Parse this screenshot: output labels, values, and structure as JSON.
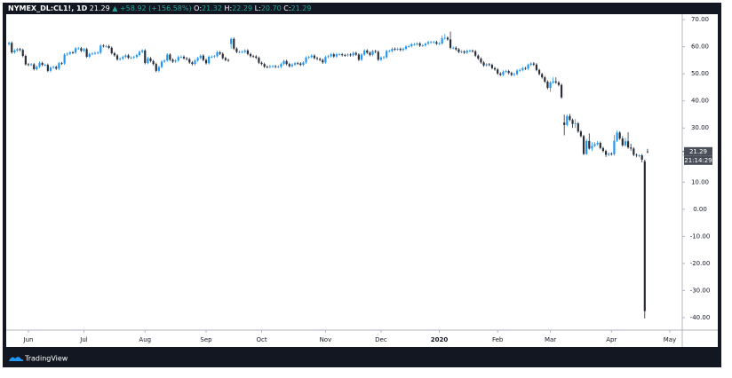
{
  "chart_data": {
    "type": "candlestick",
    "header": {
      "symbol": "NYMEX_DL:CL1!, 1D",
      "last": "21.29",
      "change": "▲ +58.92 (+156.58%)",
      "open_label": "O:",
      "open": "21.32",
      "high_label": "H:",
      "high": "22.29",
      "low_label": "L:",
      "low": "20.70",
      "close_label": "C:",
      "close": "21.29"
    },
    "last_price_label": "21.29",
    "countdown": "21:14:29",
    "brand": "TradingView",
    "up_color": "#2196f3",
    "down_color": "#2a2e39",
    "grid": false,
    "ylim": [
      -44.6,
      72.0
    ],
    "yticks": [
      {
        "value": 70,
        "label": "70.00"
      },
      {
        "value": 60,
        "label": "60.00"
      },
      {
        "value": 50,
        "label": "50.00"
      },
      {
        "value": 40,
        "label": "40.00"
      },
      {
        "value": 30,
        "label": "30.00"
      },
      {
        "value": 20,
        "label": "20.00"
      },
      {
        "value": 10,
        "label": "10.00"
      },
      {
        "value": 0,
        "label": "0.00"
      },
      {
        "value": -10,
        "label": "-10.00"
      },
      {
        "value": -20,
        "label": "-20.00"
      },
      {
        "value": -30,
        "label": "-30.00"
      },
      {
        "value": -40,
        "label": "-40.00"
      }
    ],
    "xlim": [
      -1,
      242.5
    ],
    "xticks": [
      {
        "value": 7,
        "label": "Jun"
      },
      {
        "value": 27,
        "label": "Jul"
      },
      {
        "value": 49,
        "label": "Aug"
      },
      {
        "value": 71,
        "label": "Sep"
      },
      {
        "value": 91,
        "label": "Oct"
      },
      {
        "value": 114,
        "label": "Nov"
      },
      {
        "value": 134,
        "label": "Dec"
      },
      {
        "value": 155,
        "label": "2020"
      },
      {
        "value": 176,
        "label": "Feb"
      },
      {
        "value": 195,
        "label": "Mar"
      },
      {
        "value": 217,
        "label": "Apr"
      },
      {
        "value": 238,
        "label": "May"
      }
    ],
    "ohlc": [
      [
        60.9,
        61.9,
        60.4,
        61.4
      ],
      [
        61.4,
        61.9,
        57.4,
        57.9
      ],
      [
        57.9,
        59.1,
        57.4,
        58.6
      ],
      [
        58.6,
        59.6,
        58.1,
        59.1
      ],
      [
        59.1,
        59.6,
        58.3,
        58.8
      ],
      [
        58.8,
        59.3,
        56.1,
        56.6
      ],
      [
        56.6,
        57.1,
        53.0,
        53.5
      ],
      [
        53.5,
        54.0,
        52.8,
        53.3
      ],
      [
        53.3,
        54.0,
        52.8,
        53.5
      ],
      [
        53.5,
        54.0,
        51.2,
        51.7
      ],
      [
        51.7,
        53.1,
        51.2,
        52.6
      ],
      [
        52.6,
        54.5,
        52.1,
        54.0
      ],
      [
        54.0,
        54.5,
        52.8,
        53.3
      ],
      [
        53.3,
        53.8,
        52.8,
        53.3
      ],
      [
        53.3,
        53.8,
        50.6,
        51.1
      ],
      [
        51.1,
        52.8,
        50.6,
        52.3
      ],
      [
        52.3,
        53.0,
        51.8,
        52.5
      ],
      [
        52.5,
        53.0,
        51.4,
        51.9
      ],
      [
        51.9,
        54.4,
        51.4,
        53.9
      ],
      [
        53.9,
        54.4,
        53.3,
        53.8
      ],
      [
        53.8,
        57.6,
        53.3,
        57.1
      ],
      [
        57.1,
        57.9,
        56.6,
        57.4
      ],
      [
        57.4,
        58.4,
        56.9,
        57.9
      ],
      [
        57.9,
        58.4,
        57.3,
        57.8
      ],
      [
        57.8,
        59.9,
        57.3,
        59.4
      ],
      [
        59.4,
        59.9,
        58.9,
        59.4
      ],
      [
        59.4,
        59.9,
        58.0,
        58.5
      ],
      [
        58.5,
        59.6,
        58.0,
        59.1
      ],
      [
        59.1,
        59.6,
        55.8,
        56.3
      ],
      [
        56.3,
        57.8,
        55.8,
        57.3
      ],
      [
        57.3,
        58.0,
        56.8,
        57.5
      ],
      [
        57.5,
        58.2,
        57.0,
        57.7
      ],
      [
        57.7,
        58.3,
        57.2,
        57.8
      ],
      [
        57.8,
        60.9,
        57.3,
        60.4
      ],
      [
        60.4,
        60.9,
        59.7,
        60.2
      ],
      [
        60.2,
        60.7,
        59.7,
        60.2
      ],
      [
        60.2,
        60.7,
        59.1,
        59.6
      ],
      [
        59.6,
        60.1,
        57.1,
        57.6
      ],
      [
        57.6,
        58.1,
        56.3,
        56.8
      ],
      [
        56.8,
        57.3,
        54.8,
        55.3
      ],
      [
        55.3,
        56.1,
        54.8,
        55.6
      ],
      [
        55.6,
        56.7,
        55.1,
        56.2
      ],
      [
        56.2,
        57.3,
        55.7,
        56.8
      ],
      [
        56.8,
        57.3,
        55.4,
        55.9
      ],
      [
        55.9,
        56.5,
        55.4,
        56.0
      ],
      [
        56.0,
        56.7,
        55.5,
        56.2
      ],
      [
        56.2,
        57.4,
        55.7,
        56.9
      ],
      [
        56.9,
        58.6,
        56.4,
        58.1
      ],
      [
        58.1,
        59.1,
        57.6,
        58.6
      ],
      [
        58.6,
        59.1,
        53.5,
        54.0
      ],
      [
        54.0,
        56.2,
        53.5,
        55.7
      ],
      [
        55.7,
        56.2,
        54.2,
        54.7
      ],
      [
        54.7,
        55.2,
        53.1,
        53.6
      ],
      [
        53.6,
        54.1,
        50.6,
        51.1
      ],
      [
        51.1,
        53.0,
        50.6,
        52.5
      ],
      [
        52.5,
        55.0,
        52.0,
        54.5
      ],
      [
        54.5,
        55.4,
        54.0,
        54.9
      ],
      [
        54.9,
        57.6,
        54.4,
        57.1
      ],
      [
        57.1,
        57.6,
        54.7,
        55.2
      ],
      [
        55.2,
        55.7,
        54.0,
        54.5
      ],
      [
        54.5,
        55.4,
        54.0,
        54.9
      ],
      [
        54.9,
        56.7,
        54.4,
        56.2
      ],
      [
        56.2,
        56.8,
        55.7,
        56.3
      ],
      [
        56.3,
        56.8,
        55.2,
        55.7
      ],
      [
        55.7,
        56.2,
        54.9,
        55.4
      ],
      [
        55.4,
        55.9,
        53.7,
        54.2
      ],
      [
        54.2,
        54.7,
        53.1,
        53.6
      ],
      [
        53.6,
        55.4,
        53.1,
        54.9
      ],
      [
        54.9,
        56.3,
        54.4,
        55.8
      ],
      [
        55.8,
        57.2,
        55.3,
        56.7
      ],
      [
        56.7,
        57.2,
        54.6,
        55.1
      ],
      [
        55.1,
        55.6,
        53.4,
        53.9
      ],
      [
        53.9,
        56.8,
        53.4,
        56.3
      ],
      [
        56.3,
        56.8,
        55.8,
        56.3
      ],
      [
        56.3,
        57.0,
        55.8,
        56.5
      ],
      [
        56.5,
        58.4,
        56.0,
        57.9
      ],
      [
        57.9,
        58.4,
        56.9,
        57.4
      ],
      [
        57.4,
        57.9,
        55.3,
        55.8
      ],
      [
        55.8,
        56.3,
        54.6,
        55.1
      ],
      [
        55.1,
        55.6,
        54.4,
        54.9
      ],
      [
        61.0,
        63.4,
        59.3,
        62.9
      ],
      [
        62.9,
        63.4,
        58.8,
        59.3
      ],
      [
        59.3,
        59.8,
        57.6,
        58.1
      ],
      [
        58.1,
        58.6,
        57.6,
        58.1
      ],
      [
        58.1,
        58.6,
        57.6,
        58.1
      ],
      [
        58.1,
        59.1,
        57.6,
        58.6
      ],
      [
        58.6,
        59.1,
        56.8,
        57.3
      ],
      [
        57.3,
        57.8,
        56.0,
        56.5
      ],
      [
        56.5,
        57.0,
        55.9,
        56.4
      ],
      [
        56.4,
        56.9,
        55.4,
        55.9
      ],
      [
        55.9,
        56.4,
        53.6,
        54.1
      ],
      [
        54.1,
        54.6,
        53.1,
        53.6
      ],
      [
        53.6,
        54.1,
        52.1,
        52.6
      ],
      [
        52.6,
        53.1,
        52.0,
        52.5
      ],
      [
        52.5,
        53.3,
        52.0,
        52.8
      ],
      [
        52.8,
        53.3,
        52.3,
        52.8
      ],
      [
        52.8,
        53.3,
        52.1,
        52.6
      ],
      [
        52.6,
        53.1,
        52.1,
        52.6
      ],
      [
        52.6,
        54.1,
        52.1,
        53.6
      ],
      [
        53.6,
        55.2,
        53.1,
        54.7
      ],
      [
        54.7,
        55.2,
        53.1,
        53.6
      ],
      [
        53.6,
        54.1,
        52.3,
        52.8
      ],
      [
        52.8,
        53.9,
        52.3,
        53.4
      ],
      [
        53.4,
        54.4,
        52.9,
        53.9
      ],
      [
        53.9,
        54.4,
        53.3,
        53.8
      ],
      [
        53.8,
        54.3,
        52.8,
        53.3
      ],
      [
        53.3,
        54.7,
        52.8,
        54.2
      ],
      [
        54.2,
        56.5,
        53.7,
        56.0
      ],
      [
        56.0,
        56.7,
        55.5,
        56.2
      ],
      [
        56.2,
        57.2,
        55.7,
        56.7
      ],
      [
        56.7,
        57.2,
        55.3,
        55.8
      ],
      [
        55.8,
        56.3,
        55.0,
        55.5
      ],
      [
        55.5,
        56.0,
        54.6,
        55.1
      ],
      [
        55.1,
        55.6,
        53.7,
        54.2
      ],
      [
        54.2,
        56.7,
        53.7,
        56.2
      ],
      [
        56.2,
        57.0,
        55.7,
        56.5
      ],
      [
        56.5,
        57.7,
        56.0,
        57.2
      ],
      [
        57.2,
        57.7,
        55.9,
        56.4
      ],
      [
        56.4,
        57.7,
        55.9,
        57.2
      ],
      [
        57.2,
        57.7,
        56.7,
        57.2
      ],
      [
        57.2,
        57.7,
        56.4,
        56.9
      ],
      [
        56.9,
        57.4,
        56.3,
        56.8
      ],
      [
        56.8,
        57.6,
        56.3,
        57.1
      ],
      [
        57.1,
        57.6,
        56.3,
        56.8
      ],
      [
        56.8,
        58.2,
        56.3,
        57.7
      ],
      [
        57.7,
        58.2,
        56.6,
        57.1
      ],
      [
        57.1,
        57.6,
        54.7,
        55.2
      ],
      [
        55.2,
        57.6,
        54.7,
        57.1
      ],
      [
        57.1,
        59.1,
        56.6,
        58.6
      ],
      [
        58.6,
        59.1,
        57.3,
        57.8
      ],
      [
        57.8,
        58.3,
        56.5,
        57.0
      ],
      [
        57.0,
        58.9,
        56.5,
        58.4
      ],
      [
        58.4,
        58.9,
        57.6,
        58.1
      ],
      [
        58.1,
        58.6,
        54.7,
        55.2
      ],
      [
        55.2,
        56.5,
        54.7,
        56.0
      ],
      [
        56.0,
        56.6,
        55.5,
        56.1
      ],
      [
        56.1,
        58.9,
        55.6,
        58.4
      ],
      [
        58.4,
        58.9,
        57.9,
        58.4
      ],
      [
        58.4,
        59.7,
        57.9,
        59.2
      ],
      [
        59.2,
        59.7,
        58.5,
        59.0
      ],
      [
        59.0,
        59.7,
        58.5,
        59.2
      ],
      [
        59.2,
        59.7,
        58.3,
        58.8
      ],
      [
        58.8,
        59.7,
        58.3,
        59.2
      ],
      [
        59.2,
        60.6,
        58.7,
        60.1
      ],
      [
        60.1,
        60.7,
        59.6,
        60.2
      ],
      [
        60.2,
        61.4,
        59.7,
        60.9
      ],
      [
        60.9,
        61.4,
        60.4,
        60.9
      ],
      [
        60.9,
        61.7,
        60.4,
        61.2
      ],
      [
        61.2,
        61.7,
        59.9,
        60.4
      ],
      [
        60.4,
        61.0,
        59.9,
        60.5
      ],
      [
        60.5,
        61.6,
        60.0,
        61.1
      ],
      [
        61.1,
        62.2,
        60.6,
        61.7
      ],
      [
        61.7,
        62.2,
        61.2,
        61.7
      ],
      [
        61.7,
        62.2,
        61.2,
        61.7
      ],
      [
        61.7,
        62.2,
        60.6,
        61.1
      ],
      [
        61.1,
        61.7,
        60.6,
        61.2
      ],
      [
        61.2,
        64.1,
        60.7,
        63.1
      ],
      [
        63.1,
        64.7,
        62.6,
        63.3
      ],
      [
        63.3,
        63.8,
        62.2,
        62.7
      ],
      [
        62.7,
        65.6,
        59.1,
        59.6
      ],
      [
        59.6,
        60.1,
        59.1,
        59.6
      ],
      [
        59.6,
        60.1,
        58.5,
        59.0
      ],
      [
        59.0,
        59.5,
        57.6,
        58.1
      ],
      [
        58.1,
        58.7,
        57.6,
        58.2
      ],
      [
        58.2,
        58.7,
        57.3,
        57.8
      ],
      [
        57.8,
        59.0,
        57.3,
        58.5
      ],
      [
        58.5,
        59.0,
        58.0,
        58.5
      ],
      [
        58.5,
        59.0,
        57.8,
        58.3
      ],
      [
        58.3,
        58.8,
        56.2,
        56.7
      ],
      [
        56.7,
        57.2,
        55.1,
        55.6
      ],
      [
        55.6,
        56.1,
        53.7,
        54.2
      ],
      [
        54.2,
        54.7,
        52.6,
        53.1
      ],
      [
        53.1,
        54.0,
        52.6,
        53.5
      ],
      [
        53.5,
        54.0,
        52.8,
        53.3
      ],
      [
        53.3,
        53.8,
        51.6,
        52.1
      ],
      [
        52.1,
        52.6,
        51.1,
        51.6
      ],
      [
        51.6,
        52.1,
        49.6,
        50.1
      ],
      [
        50.1,
        50.6,
        49.1,
        49.6
      ],
      [
        49.6,
        51.3,
        49.1,
        50.8
      ],
      [
        50.8,
        51.5,
        50.3,
        51.0
      ],
      [
        51.0,
        51.5,
        49.8,
        50.3
      ],
      [
        50.3,
        50.8,
        49.1,
        49.6
      ],
      [
        49.6,
        50.4,
        49.1,
        49.9
      ],
      [
        49.9,
        51.7,
        49.4,
        51.2
      ],
      [
        51.2,
        51.9,
        50.7,
        51.4
      ],
      [
        51.4,
        52.6,
        50.9,
        52.1
      ],
      [
        52.1,
        52.6,
        51.4,
        51.9
      ],
      [
        51.9,
        53.8,
        51.4,
        53.3
      ],
      [
        53.3,
        54.3,
        52.8,
        53.8
      ],
      [
        53.8,
        54.3,
        52.9,
        53.4
      ],
      [
        53.4,
        53.9,
        50.9,
        51.4
      ],
      [
        51.4,
        51.9,
        49.4,
        49.9
      ],
      [
        49.9,
        50.4,
        48.2,
        48.7
      ],
      [
        48.7,
        49.2,
        46.6,
        47.1
      ],
      [
        47.1,
        47.6,
        44.3,
        44.8
      ],
      [
        44.8,
        47.3,
        43.3,
        46.8
      ],
      [
        46.8,
        48.7,
        46.3,
        47.2
      ],
      [
        47.2,
        48.7,
        46.3,
        46.8
      ],
      [
        46.8,
        47.3,
        45.4,
        45.9
      ],
      [
        45.9,
        46.4,
        40.8,
        41.3
      ],
      [
        32.0,
        34.9,
        27.3,
        31.1
      ],
      [
        31.1,
        34.9,
        30.6,
        34.4
      ],
      [
        34.4,
        35.2,
        32.5,
        33.0
      ],
      [
        33.0,
        33.5,
        30.0,
        31.5
      ],
      [
        31.5,
        33.3,
        30.0,
        31.7
      ],
      [
        31.7,
        32.2,
        28.2,
        28.7
      ],
      [
        28.7,
        29.2,
        26.5,
        27.0
      ],
      [
        27.0,
        27.5,
        20.0,
        20.4
      ],
      [
        20.4,
        26.0,
        20.0,
        25.2
      ],
      [
        25.2,
        28.0,
        22.0,
        22.4
      ],
      [
        22.4,
        24.7,
        21.5,
        23.4
      ],
      [
        23.4,
        24.8,
        22.9,
        24.0
      ],
      [
        24.0,
        25.2,
        23.5,
        24.5
      ],
      [
        24.5,
        25.0,
        22.1,
        22.6
      ],
      [
        22.6,
        23.1,
        21.0,
        21.5
      ],
      [
        21.5,
        22.0,
        19.3,
        20.1
      ],
      [
        20.1,
        21.0,
        19.6,
        20.5
      ],
      [
        20.5,
        21.0,
        19.8,
        20.3
      ],
      [
        20.3,
        27.4,
        19.8,
        25.3
      ],
      [
        25.3,
        29.1,
        24.8,
        28.3
      ],
      [
        28.3,
        28.8,
        25.6,
        26.1
      ],
      [
        26.1,
        27.0,
        23.1,
        23.6
      ],
      [
        23.6,
        26.4,
        23.1,
        25.1
      ],
      [
        25.1,
        28.4,
        22.3,
        22.8
      ],
      [
        22.8,
        24.2,
        21.6,
        22.4
      ],
      [
        22.4,
        22.9,
        19.6,
        20.1
      ],
      [
        20.1,
        20.6,
        19.2,
        19.9
      ],
      [
        19.9,
        20.3,
        19.2,
        19.9
      ],
      [
        19.9,
        20.4,
        17.3,
        18.3
      ],
      [
        17.7,
        18.3,
        -40.3,
        -37.6
      ],
      [
        21.32,
        22.29,
        20.7,
        21.29
      ]
    ]
  }
}
